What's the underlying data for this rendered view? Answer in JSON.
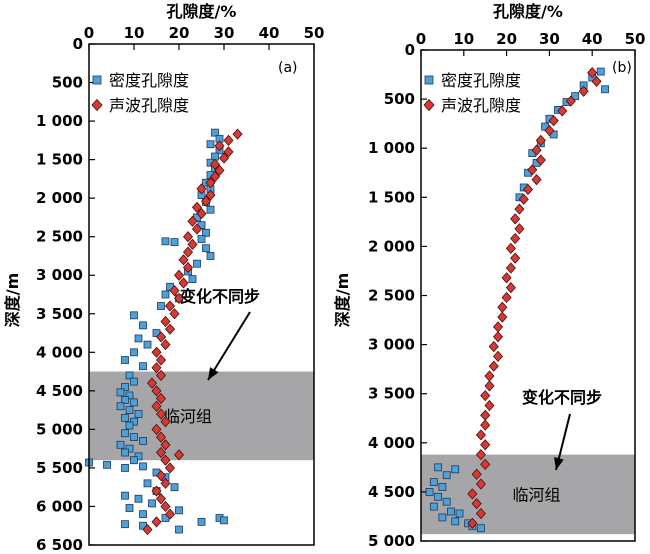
{
  "chart_data": [
    {
      "type": "scatter",
      "panel_label": "(a)",
      "title": "孔隙度/%",
      "ylabel": "深度/m",
      "xlim": [
        0,
        50
      ],
      "ylim": [
        6500,
        0
      ],
      "x_ticks": [
        "0",
        "10",
        "20",
        "30",
        "40",
        "50"
      ],
      "y_ticks": [
        "0",
        "500",
        "1 000",
        "1 500",
        "2 000",
        "2 500",
        "3 000",
        "3 500",
        "4 000",
        "4 500",
        "5 000",
        "5 500",
        "6 000",
        "6 500"
      ],
      "y_tick_values": [
        0,
        500,
        1000,
        1500,
        2000,
        2500,
        3000,
        3500,
        4000,
        4500,
        5000,
        5500,
        6000,
        6500
      ],
      "legend_position": "top-left",
      "series": [
        {
          "name": "密度孔隙度",
          "marker": "square",
          "color": "#4f9fd8",
          "points": [
            [
              28,
              1150
            ],
            [
              29,
              1230
            ],
            [
              27,
              1300
            ],
            [
              29,
              1380
            ],
            [
              28,
              1460
            ],
            [
              27,
              1540
            ],
            [
              28,
              1620
            ],
            [
              27,
              1700
            ],
            [
              26,
              1800
            ],
            [
              27,
              1880
            ],
            [
              25,
              1960
            ],
            [
              26,
              2050
            ],
            [
              27,
              2150
            ],
            [
              24,
              2250
            ],
            [
              25,
              2350
            ],
            [
              26,
              2450
            ],
            [
              25,
              2530
            ],
            [
              17,
              2560
            ],
            [
              19,
              2570
            ],
            [
              26,
              2650
            ],
            [
              27,
              2750
            ],
            [
              24,
              2850
            ],
            [
              22,
              2950
            ],
            [
              23,
              3050
            ],
            [
              18,
              3150
            ],
            [
              17,
              3250
            ],
            [
              20,
              3300
            ],
            [
              16,
              3400
            ],
            [
              10,
              3520
            ],
            [
              12,
              3650
            ],
            [
              15,
              3750
            ],
            [
              11,
              3820
            ],
            [
              13,
              3900
            ],
            [
              10,
              4000
            ],
            [
              8,
              4100
            ],
            [
              12,
              4180
            ],
            [
              9,
              4300
            ],
            [
              10,
              4380
            ],
            [
              8,
              4450
            ],
            [
              7,
              4520
            ],
            [
              9,
              4560
            ],
            [
              8,
              4620
            ],
            [
              10,
              4650
            ],
            [
              7,
              4700
            ],
            [
              9,
              4750
            ],
            [
              11,
              4800
            ],
            [
              8,
              4850
            ],
            [
              10,
              4900
            ],
            [
              9,
              4950
            ],
            [
              8,
              5050
            ],
            [
              10,
              5100
            ],
            [
              12,
              5150
            ],
            [
              7,
              5200
            ],
            [
              9,
              5250
            ],
            [
              8,
              5300
            ],
            [
              11,
              5350
            ],
            [
              10,
              5400
            ],
            [
              0,
              5430
            ],
            [
              4,
              5460
            ],
            [
              12,
              5480
            ],
            [
              8,
              5500
            ],
            [
              15,
              5560
            ],
            [
              17,
              5620
            ],
            [
              13,
              5700
            ],
            [
              19,
              5750
            ],
            [
              15,
              5800
            ],
            [
              8,
              5860
            ],
            [
              11,
              5900
            ],
            [
              14,
              5960
            ],
            [
              9,
              6020
            ],
            [
              20,
              6050
            ],
            [
              12,
              6100
            ],
            [
              17,
              6150
            ],
            [
              29,
              6150
            ],
            [
              30,
              6180
            ],
            [
              25,
              6200
            ],
            [
              8,
              6230
            ],
            [
              12,
              6250
            ],
            [
              20,
              6300
            ]
          ]
        },
        {
          "name": "声波孔隙度",
          "marker": "diamond",
          "color": "#d63a34",
          "points": [
            [
              33,
              1170
            ],
            [
              31,
              1250
            ],
            [
              29,
              1320
            ],
            [
              31,
              1400
            ],
            [
              30,
              1480
            ],
            [
              28,
              1560
            ],
            [
              29,
              1640
            ],
            [
              28,
              1720
            ],
            [
              27,
              1800
            ],
            [
              25,
              1880
            ],
            [
              27,
              1960
            ],
            [
              26,
              2040
            ],
            [
              24,
              2120
            ],
            [
              25,
              2200
            ],
            [
              23,
              2300
            ],
            [
              24,
              2400
            ],
            [
              22,
              2500
            ],
            [
              23,
              2600
            ],
            [
              22,
              2700
            ],
            [
              21,
              2800
            ],
            [
              22,
              2900
            ],
            [
              20,
              3000
            ],
            [
              21,
              3100
            ],
            [
              19,
              3200
            ],
            [
              20,
              3300
            ],
            [
              18,
              3400
            ],
            [
              19,
              3500
            ],
            [
              17,
              3600
            ],
            [
              18,
              3700
            ],
            [
              16,
              3800
            ],
            [
              17,
              3900
            ],
            [
              15,
              4000
            ],
            [
              16,
              4100
            ],
            [
              15,
              4200
            ],
            [
              16,
              4300
            ],
            [
              14,
              4400
            ],
            [
              15,
              4500
            ],
            [
              16,
              4600
            ],
            [
              15,
              4700
            ],
            [
              16,
              4800
            ],
            [
              17,
              4900
            ],
            [
              15,
              5000
            ],
            [
              16,
              5100
            ],
            [
              17,
              5200
            ],
            [
              16,
              5300
            ],
            [
              20,
              5330
            ],
            [
              17,
              5400
            ],
            [
              18,
              5500
            ],
            [
              16,
              5600
            ],
            [
              17,
              5700
            ],
            [
              15,
              5800
            ],
            [
              16,
              5900
            ],
            [
              17,
              6000
            ],
            [
              18,
              6100
            ],
            [
              15,
              6200
            ],
            [
              13,
              6300
            ]
          ]
        }
      ],
      "shaded_band": {
        "y_from": 4250,
        "y_to": 5400,
        "color": "#a6a6a8",
        "label": "临河组",
        "label_color": "#e02020"
      },
      "annotation": "变化不同步"
    },
    {
      "type": "scatter",
      "panel_label": "(b)",
      "title": "孔隙度/%",
      "ylabel": "深度/m",
      "xlim": [
        0,
        50
      ],
      "ylim": [
        5000,
        0
      ],
      "x_ticks": [
        "0",
        "10",
        "20",
        "30",
        "40",
        "50"
      ],
      "y_ticks": [
        "0",
        "500",
        "1 000",
        "1 500",
        "2 000",
        "2 500",
        "3 000",
        "3 500",
        "4 000",
        "4 500",
        "5 000"
      ],
      "y_tick_values": [
        0,
        500,
        1000,
        1500,
        2000,
        2500,
        3000,
        3500,
        4000,
        4500,
        5000
      ],
      "legend_position": "top-left",
      "series": [
        {
          "name": "密度孔隙度",
          "marker": "square",
          "color": "#4f9fd8",
          "points": [
            [
              42,
              220
            ],
            [
              40,
              280
            ],
            [
              38,
              360
            ],
            [
              43,
              400
            ],
            [
              36,
              470
            ],
            [
              34,
              530
            ],
            [
              32,
              610
            ],
            [
              30,
              700
            ],
            [
              29,
              780
            ],
            [
              31,
              860
            ],
            [
              28,
              950
            ],
            [
              26,
              1050
            ],
            [
              27,
              1150
            ],
            [
              25,
              1250
            ],
            [
              24,
              1400
            ],
            [
              23,
              1500
            ],
            [
              4,
              4250
            ],
            [
              8,
              4270
            ],
            [
              6,
              4330
            ],
            [
              3,
              4400
            ],
            [
              5,
              4450
            ],
            [
              2,
              4500
            ],
            [
              4,
              4550
            ],
            [
              6,
              4600
            ],
            [
              3,
              4650
            ],
            [
              7,
              4700
            ],
            [
              9,
              4720
            ],
            [
              5,
              4760
            ],
            [
              8,
              4800
            ],
            [
              11,
              4820
            ],
            [
              12,
              4850
            ],
            [
              14,
              4870
            ]
          ]
        },
        {
          "name": "声波孔隙度",
          "marker": "diamond",
          "color": "#d63a34",
          "points": [
            [
              40,
              230
            ],
            [
              41,
              320
            ],
            [
              38,
              420
            ],
            [
              35,
              520
            ],
            [
              33,
              620
            ],
            [
              31,
              720
            ],
            [
              30,
              820
            ],
            [
              28,
              920
            ],
            [
              27,
              1020
            ],
            [
              28,
              1120
            ],
            [
              26,
              1220
            ],
            [
              27,
              1320
            ],
            [
              25,
              1420
            ],
            [
              24,
              1520
            ],
            [
              23,
              1620
            ],
            [
              22,
              1720
            ],
            [
              23,
              1820
            ],
            [
              22,
              1920
            ],
            [
              21,
              2020
            ],
            [
              22,
              2120
            ],
            [
              21,
              2220
            ],
            [
              20,
              2320
            ],
            [
              21,
              2420
            ],
            [
              20,
              2520
            ],
            [
              19,
              2620
            ],
            [
              19,
              2720
            ],
            [
              18,
              2820
            ],
            [
              18,
              2920
            ],
            [
              17,
              3020
            ],
            [
              18,
              3120
            ],
            [
              17,
              3220
            ],
            [
              16,
              3320
            ],
            [
              16,
              3420
            ],
            [
              15,
              3520
            ],
            [
              16,
              3620
            ],
            [
              15,
              3720
            ],
            [
              15,
              3820
            ],
            [
              14,
              3920
            ],
            [
              15,
              4020
            ],
            [
              14,
              4120
            ],
            [
              15,
              4220
            ],
            [
              13,
              4320
            ],
            [
              14,
              4420
            ],
            [
              12,
              4520
            ],
            [
              13,
              4620
            ],
            [
              14,
              4720
            ],
            [
              12,
              4820
            ]
          ]
        }
      ],
      "shaded_band": {
        "y_from": 4120,
        "y_to": 4930,
        "color": "#a6a6a8",
        "label": "临河组",
        "label_color": "#e02020"
      },
      "annotation": "变化不同步"
    }
  ]
}
